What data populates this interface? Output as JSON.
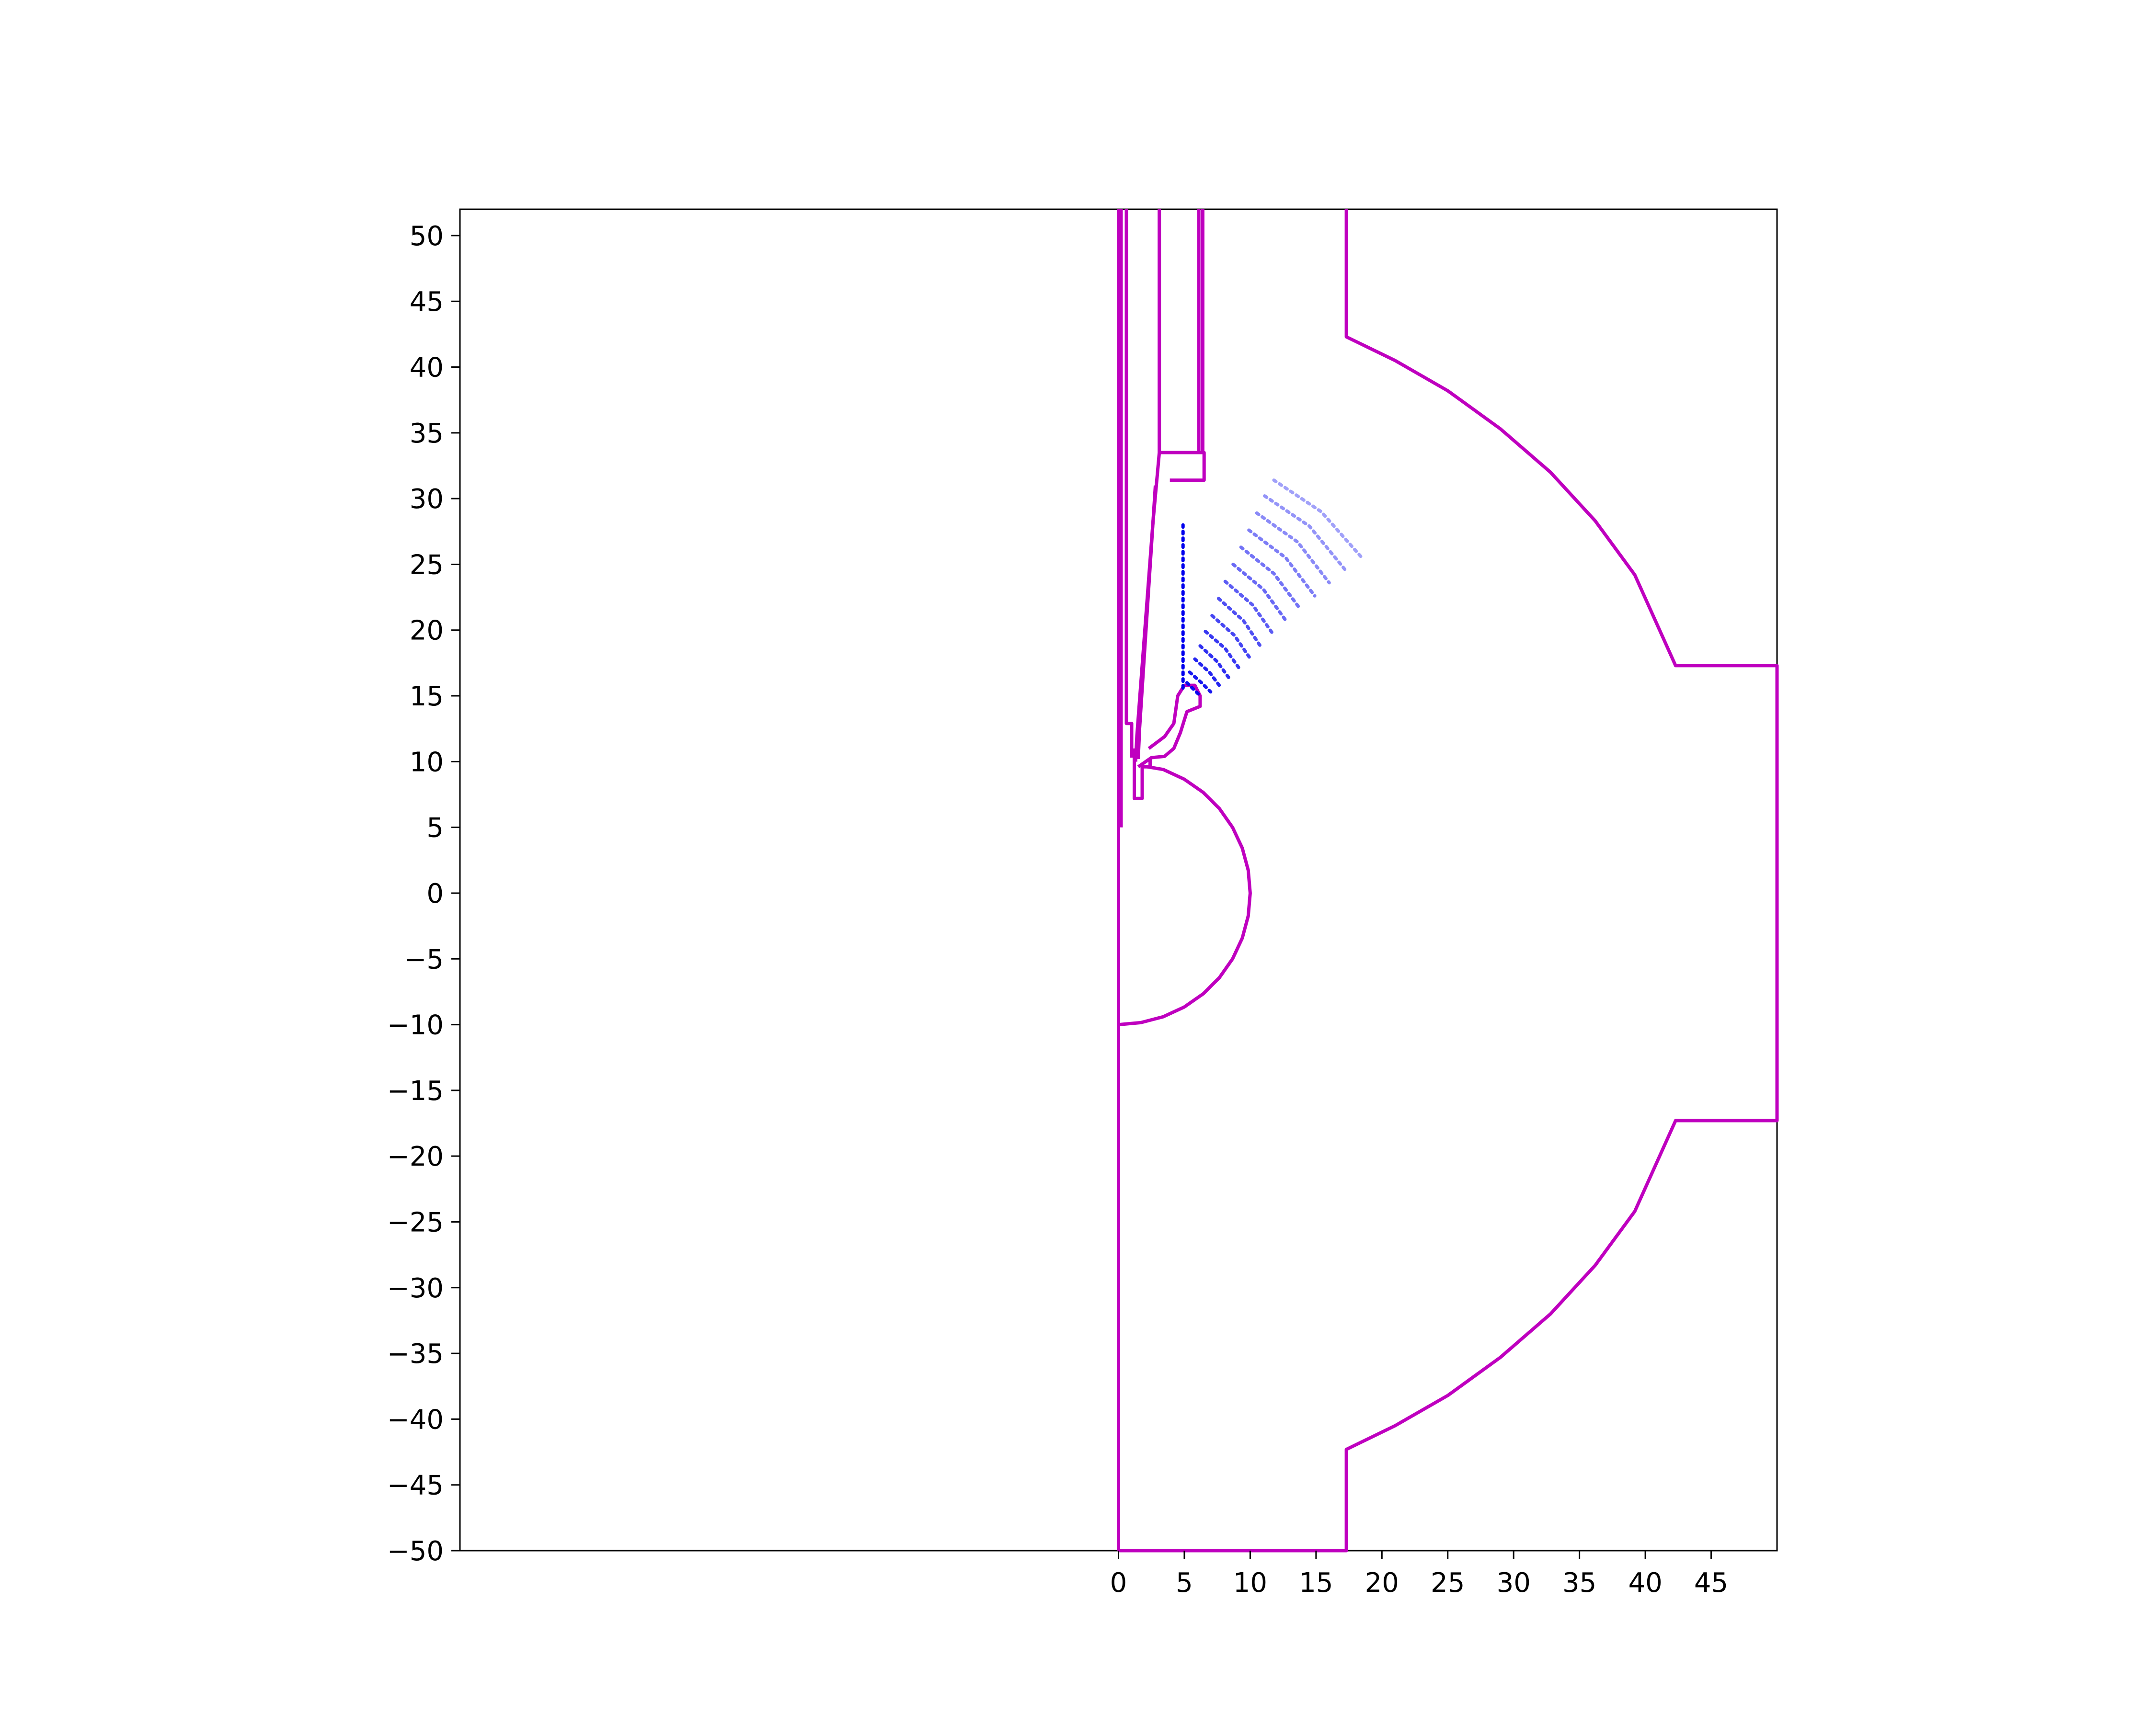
{
  "chart_data": {
    "type": "line",
    "title": "",
    "xlabel": "",
    "ylabel": "",
    "xlim": [
      -50,
      50
    ],
    "ylim": [
      -50,
      52
    ],
    "grid": false,
    "legend": "none",
    "x_ticks": [
      0,
      5,
      10,
      15,
      20,
      25,
      30,
      35,
      40,
      45
    ],
    "x_tick_labels": [
      "0",
      "5",
      "10",
      "15",
      "20",
      "25",
      "30",
      "35",
      "40",
      "45"
    ],
    "y_ticks": [
      50,
      45,
      40,
      35,
      30,
      25,
      20,
      15,
      10,
      5,
      0,
      -5,
      -10,
      -15,
      -20,
      -25,
      -30,
      -35,
      -40,
      -45,
      -50
    ],
    "y_tick_labels": [
      "50",
      "45",
      "40",
      "35",
      "30",
      "25",
      "20",
      "15",
      "10",
      "5",
      "0",
      "−5",
      "−10",
      "−15",
      "−20",
      "−25",
      "−30",
      "−35",
      "−40",
      "−45",
      "−50"
    ],
    "colors": {
      "geometry": "#bf00bf",
      "field": "#0000ee",
      "axes": "#000000"
    },
    "geometry_series": [
      {
        "id": "chamber-outline",
        "points": [
          [
            0,
            -50
          ],
          [
            17.3,
            -50
          ],
          [
            17.3,
            -42.3
          ],
          [
            21,
            -40.5
          ],
          [
            25,
            -38.2
          ],
          [
            29,
            -35.3
          ],
          [
            32.8,
            -32
          ],
          [
            36.2,
            -28.3
          ],
          [
            39.2,
            -24.2
          ],
          [
            42.3,
            -17.3
          ],
          [
            50,
            -17.3
          ],
          [
            50,
            17.3
          ],
          [
            42.3,
            17.3
          ],
          [
            39.2,
            24.2
          ],
          [
            36.2,
            28.3
          ],
          [
            32.8,
            32
          ],
          [
            29,
            35.3
          ],
          [
            25,
            38.2
          ],
          [
            21,
            40.5
          ],
          [
            17.3,
            42.3
          ],
          [
            17.3,
            52
          ]
        ]
      },
      {
        "id": "axis-line",
        "points": [
          [
            0,
            -50
          ],
          [
            0,
            52
          ]
        ]
      },
      {
        "id": "sphere-outline",
        "points": [
          [
            0,
            -10
          ],
          [
            1.7,
            -9.85
          ],
          [
            3.4,
            -9.4
          ],
          [
            5,
            -8.66
          ],
          [
            6.43,
            -7.66
          ],
          [
            7.66,
            -6.43
          ],
          [
            8.66,
            -5
          ],
          [
            9.4,
            -3.42
          ],
          [
            9.85,
            -1.74
          ],
          [
            10,
            0
          ],
          [
            9.85,
            1.74
          ],
          [
            9.4,
            3.42
          ],
          [
            8.66,
            5
          ],
          [
            7.66,
            6.43
          ],
          [
            6.43,
            7.66
          ],
          [
            5,
            8.66
          ],
          [
            3.4,
            9.4
          ],
          [
            2.2,
            9.6
          ]
        ]
      },
      {
        "id": "left-tube-outer",
        "points": [
          [
            0.2,
            52
          ],
          [
            0.2,
            5
          ]
        ]
      },
      {
        "id": "left-tube-inner",
        "points": [
          [
            0.6,
            52
          ],
          [
            0.6,
            12.9
          ],
          [
            1,
            12.9
          ],
          [
            1,
            10.3
          ]
        ]
      },
      {
        "id": "electrode-stem",
        "points": [
          [
            3.1,
            52
          ],
          [
            3.1,
            33.5
          ],
          [
            2.6,
            28
          ],
          [
            1.4,
            12
          ],
          [
            1.3,
            10
          ]
        ]
      },
      {
        "id": "electrode-stem-inner",
        "points": [
          [
            2.8,
            31
          ],
          [
            1.6,
            12.5
          ],
          [
            1.5,
            10.2
          ]
        ]
      },
      {
        "id": "electrode-cap",
        "points": [
          [
            3.1,
            33.5
          ],
          [
            6.5,
            33.5
          ],
          [
            6.5,
            31.4
          ],
          [
            3.9,
            31.4
          ]
        ]
      },
      {
        "id": "right-tube",
        "points": [
          [
            6.1,
            52
          ],
          [
            6.1,
            33.5
          ]
        ]
      },
      {
        "id": "right-tube-inner",
        "points": [
          [
            6.4,
            52
          ],
          [
            6.4,
            33.5
          ]
        ]
      },
      {
        "id": "lower-plug",
        "points": [
          [
            1.2,
            11
          ],
          [
            1.2,
            7.2
          ],
          [
            1.8,
            7.2
          ],
          [
            1.8,
            9.6
          ],
          [
            2.4,
            9.6
          ],
          [
            2.4,
            10.3
          ]
        ]
      },
      {
        "id": "tip-nose",
        "points": [
          [
            1.5,
            9.6
          ],
          [
            2.5,
            10.3
          ],
          [
            3.5,
            10.4
          ],
          [
            4.2,
            11
          ],
          [
            4.7,
            12.2
          ],
          [
            5.2,
            13.8
          ],
          [
            6.2,
            14.2
          ],
          [
            6.2,
            15
          ],
          [
            5.8,
            15.8
          ],
          [
            5,
            15.8
          ],
          [
            4.5,
            15
          ],
          [
            4.2,
            12.9
          ],
          [
            3.5,
            11.9
          ],
          [
            2.3,
            11
          ]
        ]
      }
    ],
    "field_series": [
      {
        "id": "field-line-0",
        "points": [
          [
            4.9,
            15.6
          ],
          [
            4.9,
            20
          ],
          [
            4.9,
            24
          ],
          [
            4.9,
            28
          ]
        ]
      },
      {
        "id": "field-arc-1",
        "points": [
          [
            5.2,
            16
          ],
          [
            5.7,
            15.5
          ],
          [
            6.2,
            15
          ]
        ]
      },
      {
        "id": "field-arc-2",
        "points": [
          [
            5.4,
            16.8
          ],
          [
            6.3,
            16
          ],
          [
            7,
            15.3
          ]
        ]
      },
      {
        "id": "field-arc-3",
        "points": [
          [
            5.8,
            17.8
          ],
          [
            6.9,
            16.8
          ],
          [
            7.8,
            15.6
          ]
        ]
      },
      {
        "id": "field-arc-4",
        "points": [
          [
            6.2,
            18.8
          ],
          [
            7.5,
            17.6
          ],
          [
            8.5,
            16.2
          ]
        ]
      },
      {
        "id": "field-arc-5",
        "points": [
          [
            6.6,
            19.9
          ],
          [
            8.1,
            18.6
          ],
          [
            9.3,
            16.9
          ]
        ]
      },
      {
        "id": "field-arc-6",
        "points": [
          [
            7.1,
            21.1
          ],
          [
            8.8,
            19.6
          ],
          [
            10.1,
            17.7
          ]
        ]
      },
      {
        "id": "field-arc-7",
        "points": [
          [
            7.6,
            22.4
          ],
          [
            9.5,
            20.7
          ],
          [
            10.9,
            18.6
          ]
        ]
      },
      {
        "id": "field-arc-8",
        "points": [
          [
            8.1,
            23.7
          ],
          [
            10.2,
            21.9
          ],
          [
            11.8,
            19.6
          ]
        ]
      },
      {
        "id": "field-arc-9",
        "points": [
          [
            8.7,
            25
          ],
          [
            11,
            23.1
          ],
          [
            12.8,
            20.6
          ]
        ]
      },
      {
        "id": "field-arc-10",
        "points": [
          [
            9.3,
            26.3
          ],
          [
            11.8,
            24.3
          ],
          [
            13.8,
            21.6
          ]
        ]
      },
      {
        "id": "field-arc-11",
        "points": [
          [
            9.9,
            27.6
          ],
          [
            12.7,
            25.5
          ],
          [
            14.9,
            22.6
          ]
        ]
      },
      {
        "id": "field-arc-12",
        "points": [
          [
            10.5,
            28.9
          ],
          [
            13.6,
            26.7
          ],
          [
            16,
            23.6
          ]
        ]
      },
      {
        "id": "field-arc-13",
        "points": [
          [
            11.1,
            30.2
          ],
          [
            14.5,
            27.9
          ],
          [
            17.2,
            24.6
          ]
        ]
      },
      {
        "id": "field-arc-14",
        "points": [
          [
            11.8,
            31.4
          ],
          [
            15.4,
            29
          ],
          [
            18.4,
            25.6
          ]
        ]
      }
    ]
  }
}
